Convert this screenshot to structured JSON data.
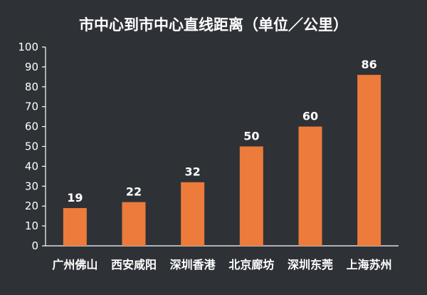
{
  "chart_data": {
    "type": "bar",
    "title": "市中心到市中心直线距离（单位／公里）",
    "categories": [
      "广州佛山",
      "西安咸阳",
      "深圳香港",
      "北京廊坊",
      "深圳东莞",
      "上海苏州"
    ],
    "values": [
      19,
      22,
      32,
      50,
      60,
      86
    ],
    "data_labels": [
      "19",
      "22",
      "32",
      "50",
      "60",
      "86"
    ],
    "ylim": [
      0,
      100
    ],
    "yticks": [
      0,
      10,
      20,
      30,
      40,
      50,
      60,
      70,
      80,
      90,
      100
    ],
    "ytick_labels": [
      "0",
      "10",
      "20",
      "30",
      "40",
      "50",
      "60",
      "70",
      "80",
      "90",
      "100"
    ],
    "grid": false,
    "legend": "none",
    "bar_color": "#ec7b3c",
    "background_color": "#2e3236",
    "text_color": "#ffffff"
  }
}
